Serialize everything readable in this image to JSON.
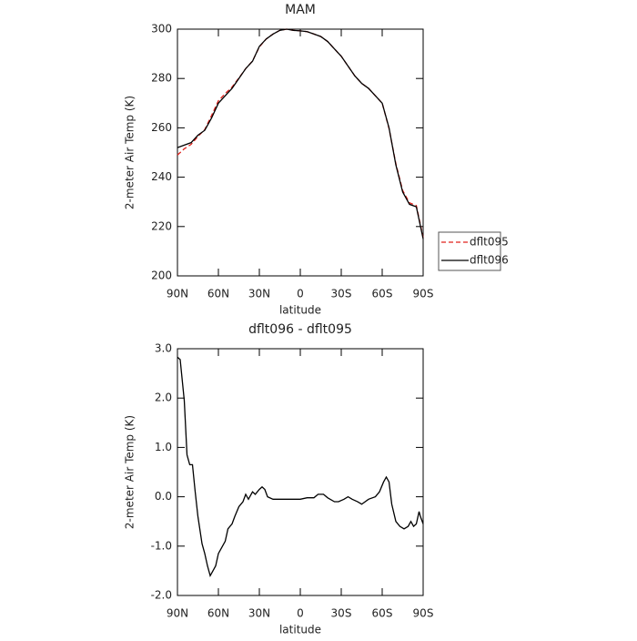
{
  "chart_data": [
    {
      "type": "line",
      "title": "MAM",
      "xlabel": "latitude",
      "ylabel": "2-meter Air Temp (K)",
      "x": [
        90,
        85,
        80,
        75,
        70,
        65,
        60,
        55,
        50,
        45,
        40,
        35,
        30,
        25,
        20,
        15,
        10,
        5,
        0,
        -5,
        -10,
        -15,
        -20,
        -25,
        -30,
        -35,
        -40,
        -45,
        -50,
        -55,
        -60,
        -65,
        -70,
        -75,
        -80,
        -85,
        -90
      ],
      "series": [
        {
          "name": "dflt095",
          "color": "#e0201b",
          "line_style": "dashed",
          "values": [
            249,
            251.5,
            253.3,
            256.5,
            259.3,
            265,
            271,
            273.9,
            276.5,
            280.2,
            284,
            287.1,
            292.8,
            296,
            298,
            299.5,
            300,
            299.5,
            299.3,
            299,
            298,
            297,
            295,
            292,
            289,
            285,
            281,
            278,
            276,
            273,
            270,
            259.7,
            245.5,
            234.6,
            229.6,
            228.5,
            215.5
          ]
        },
        {
          "name": "dflt096",
          "color": "#000000",
          "line_style": "solid",
          "values": [
            252,
            253,
            254,
            257,
            259,
            264,
            270,
            273,
            276,
            280,
            284,
            287,
            293,
            296,
            298,
            299.5,
            300,
            299.5,
            299.3,
            299,
            298,
            297,
            295,
            292,
            289,
            285,
            281,
            278,
            276,
            273,
            270,
            260,
            245,
            234,
            229,
            228,
            215
          ]
        }
      ],
      "xlim": [
        90,
        -90
      ],
      "xticks": [
        {
          "value": 90,
          "label": "90N"
        },
        {
          "value": 60,
          "label": "60N"
        },
        {
          "value": 30,
          "label": "30N"
        },
        0,
        {
          "value": -30,
          "label": "30S"
        },
        {
          "value": -60,
          "label": "60S"
        },
        {
          "value": -90,
          "label": "90S"
        }
      ],
      "ylim": [
        200,
        300
      ],
      "yticks": [
        200,
        220,
        240,
        260,
        280,
        300
      ],
      "legend": "right"
    },
    {
      "type": "line",
      "title": "dflt096 - dflt095",
      "xlabel": "latitude",
      "ylabel": "2-meter Air Temp (K)",
      "x": [
        90,
        88,
        85,
        83,
        81,
        79,
        77,
        75,
        72,
        70,
        68,
        66,
        64,
        62,
        60,
        57,
        55,
        53,
        50,
        48,
        45,
        42,
        40,
        38,
        35,
        33,
        30,
        28,
        26,
        24,
        20,
        15,
        10,
        5,
        0,
        -5,
        -10,
        -13,
        -17,
        -20,
        -25,
        -28,
        -32,
        -35,
        -38,
        -42,
        -45,
        -50,
        -55,
        -58,
        -61,
        -63,
        -65,
        -67,
        -70,
        -73,
        -76,
        -79,
        -81,
        -83,
        -85,
        -87,
        -88,
        -90
      ],
      "series": [
        {
          "name": "dflt096 - dflt095",
          "color": "#000000",
          "line_style": "solid",
          "values": [
            2.83,
            2.78,
            1.95,
            0.85,
            0.65,
            0.65,
            0.1,
            -0.4,
            -0.95,
            -1.15,
            -1.4,
            -1.6,
            -1.5,
            -1.4,
            -1.15,
            -1.0,
            -0.9,
            -0.65,
            -0.55,
            -0.4,
            -0.2,
            -0.1,
            0.05,
            -0.05,
            0.1,
            0.05,
            0.15,
            0.2,
            0.15,
            0.0,
            -0.05,
            -0.05,
            -0.05,
            -0.05,
            -0.05,
            -0.02,
            -0.02,
            0.05,
            0.05,
            -0.02,
            -0.1,
            -0.1,
            -0.05,
            0.0,
            -0.05,
            -0.1,
            -0.15,
            -0.05,
            0.0,
            0.1,
            0.3,
            0.4,
            0.3,
            -0.15,
            -0.5,
            -0.6,
            -0.65,
            -0.6,
            -0.5,
            -0.6,
            -0.55,
            -0.3,
            -0.4,
            -0.55
          ]
        }
      ],
      "xlim": [
        90,
        -90
      ],
      "xticks": [
        {
          "value": 90,
          "label": "90N"
        },
        {
          "value": 60,
          "label": "60N"
        },
        {
          "value": 30,
          "label": "30N"
        },
        0,
        {
          "value": -30,
          "label": "30S"
        },
        {
          "value": -60,
          "label": "60S"
        },
        {
          "value": -90,
          "label": "90S"
        }
      ],
      "ylim": [
        -2,
        3
      ],
      "yticks": [
        {
          "value": -2,
          "label": "-2.0"
        },
        {
          "value": -1,
          "label": "-1.0"
        },
        {
          "value": 0,
          "label": "0.0"
        },
        {
          "value": 1,
          "label": "1.0"
        },
        {
          "value": 2,
          "label": "2.0"
        },
        {
          "value": 3,
          "label": "3.0"
        }
      ]
    }
  ]
}
